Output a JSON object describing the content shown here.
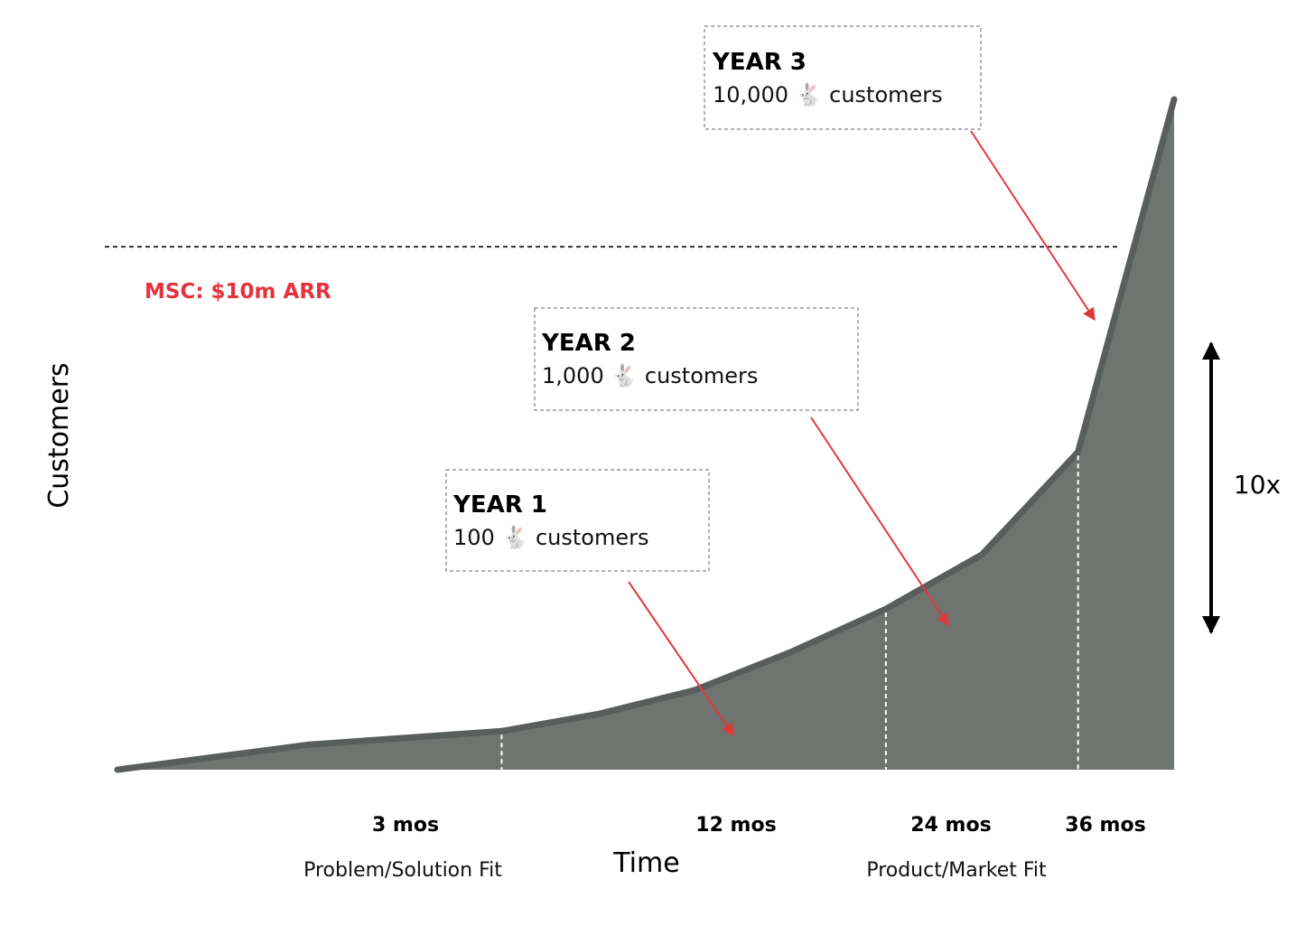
{
  "chart_data": {
    "type": "area",
    "x_unit": "months",
    "curve": {
      "x": [
        0,
        6,
        12,
        15,
        18,
        21,
        24,
        27,
        30,
        33
      ],
      "y": [
        0,
        50,
        100,
        180,
        320,
        600,
        1000,
        1600,
        3000,
        10000
      ],
      "color": "#6f7471"
    },
    "ylabel": "Customers",
    "xlabel": "Time",
    "ticks": [
      {
        "label": "3 mos"
      },
      {
        "label": "12 mos"
      },
      {
        "label": "24 mos"
      },
      {
        "label": "36 mos"
      }
    ],
    "phases": [
      "Problem/Solution Fit",
      "Product/Market Fit"
    ],
    "reference_line": {
      "label": "MSC: $10m ARR",
      "y": 6700,
      "color": "#e5333d"
    },
    "ratio_label": "10x",
    "annotations": [
      {
        "title": "YEAR 1",
        "value": "100",
        "icon": "rabbit-icon",
        "suffix": "customers",
        "target_x": 12
      },
      {
        "title": "YEAR 2",
        "value": "1,000",
        "icon": "rabbit-icon",
        "suffix": "customers",
        "target_x": 24
      },
      {
        "title": "YEAR 3",
        "value": "10,000",
        "icon": "rabbit-icon",
        "suffix": "customers",
        "target_x": 30
      }
    ],
    "arrow_color": "#e03a3a"
  }
}
